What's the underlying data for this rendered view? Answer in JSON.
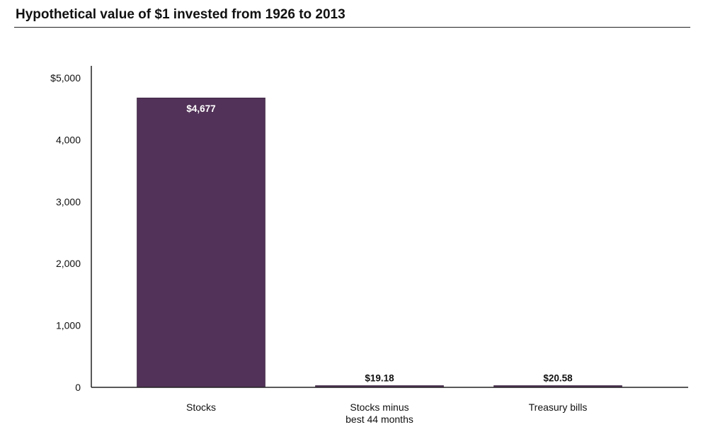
{
  "chart_data": {
    "type": "bar",
    "title": "Hypothetical value of $1 invested from 1926 to 2013",
    "xlabel": "",
    "ylabel": "",
    "ylim": [
      0,
      5000
    ],
    "yticks": [
      0,
      1000,
      2000,
      3000,
      4000,
      5000
    ],
    "ytick_labels": [
      "0",
      "1,000",
      "2,000",
      "3,000",
      "4,000",
      "$5,000"
    ],
    "categories": [
      [
        "Stocks"
      ],
      [
        "Stocks minus",
        "best 44 months"
      ],
      [
        "Treasury bills"
      ]
    ],
    "values": [
      4677,
      19.18,
      20.58
    ],
    "data_labels": [
      "$4,677",
      "$19.18",
      "$20.58"
    ],
    "bar_color": "#523258",
    "label_color_inside": "#ffffff",
    "label_color_outside": "#111111",
    "grid": false
  }
}
